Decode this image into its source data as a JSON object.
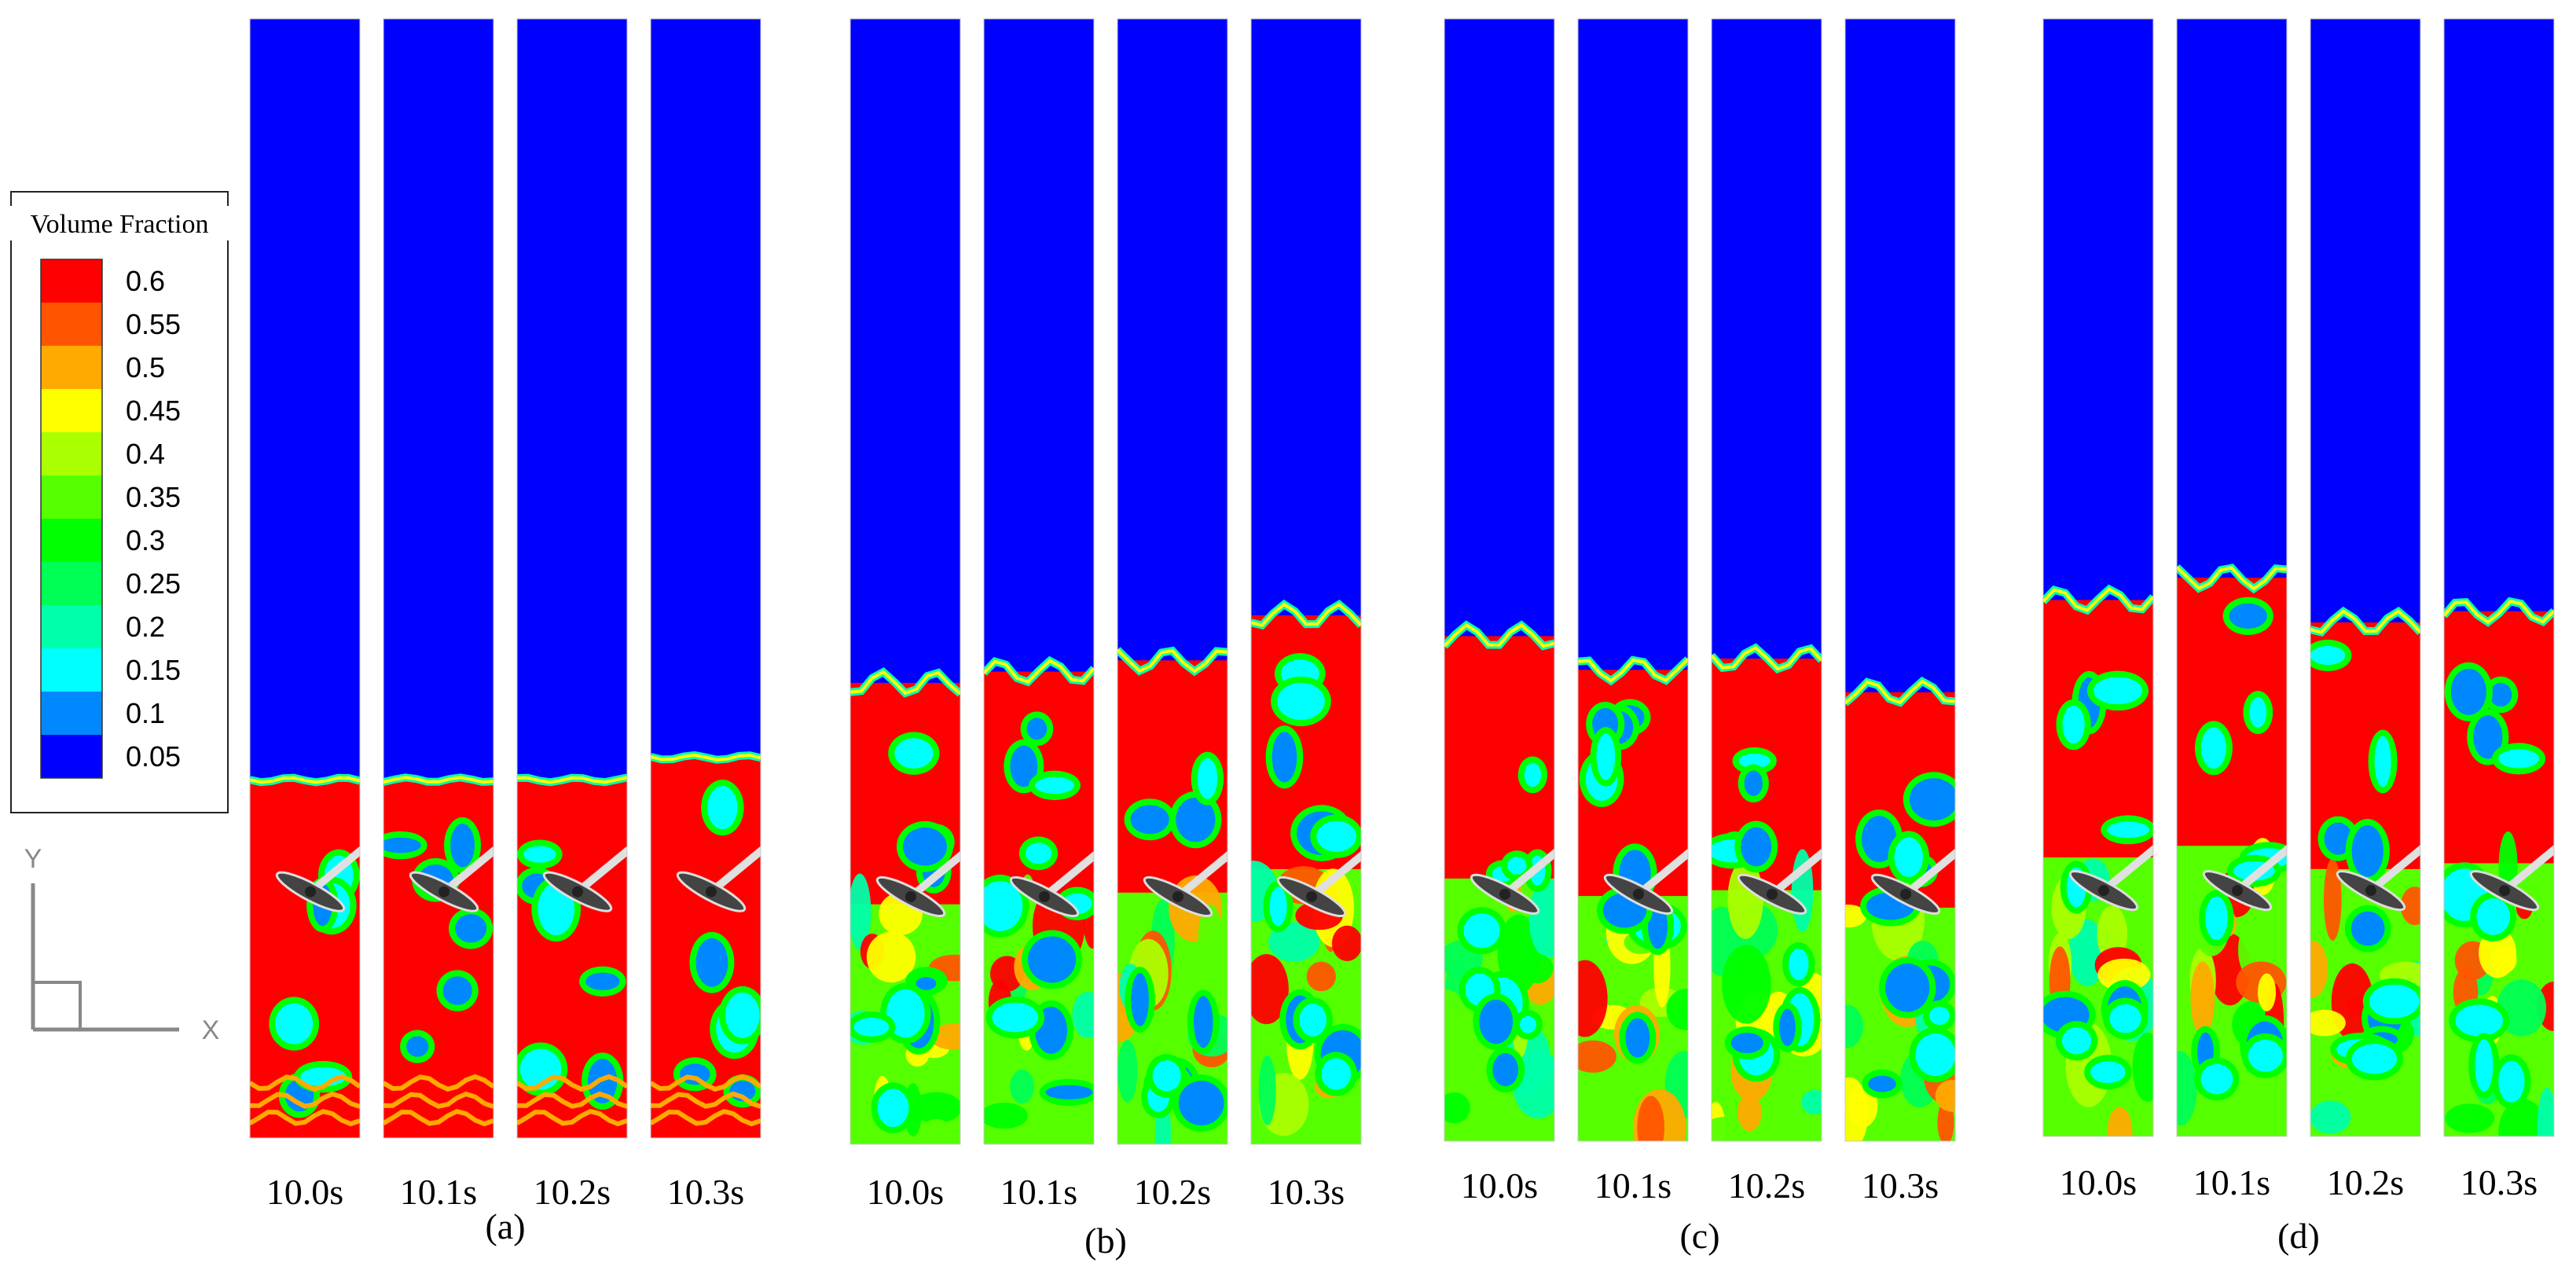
{
  "legend": {
    "title": "Volume Fraction",
    "levels": [
      {
        "label": "0.6",
        "color": "#ff0000"
      },
      {
        "label": "0.55",
        "color": "#ff5500"
      },
      {
        "label": "0.5",
        "color": "#ffaa00"
      },
      {
        "label": "0.45",
        "color": "#ffff00"
      },
      {
        "label": "0.4",
        "color": "#aaff00"
      },
      {
        "label": "0.35",
        "color": "#55ff00"
      },
      {
        "label": "0.3",
        "color": "#00ff00"
      },
      {
        "label": "0.25",
        "color": "#00ff55"
      },
      {
        "label": "0.2",
        "color": "#00ffaa"
      },
      {
        "label": "0.15",
        "color": "#00ffff"
      },
      {
        "label": "0.1",
        "color": "#0088ff"
      },
      {
        "label": "0.05",
        "color": "#0000ff"
      }
    ]
  },
  "axes": {
    "y_label": "Y",
    "x_label": "X"
  },
  "groups": [
    {
      "label": "(a)",
      "panels": [
        {
          "time": "10.0s",
          "bed_fraction": 0.32
        },
        {
          "time": "10.1s",
          "bed_fraction": 0.32
        },
        {
          "time": "10.2s",
          "bed_fraction": 0.32
        },
        {
          "time": "10.3s",
          "bed_fraction": 0.34
        }
      ]
    },
    {
      "label": "(b)",
      "panels": [
        {
          "time": "10.0s",
          "bed_fraction": 0.41
        },
        {
          "time": "10.1s",
          "bed_fraction": 0.42
        },
        {
          "time": "10.2s",
          "bed_fraction": 0.43
        },
        {
          "time": "10.3s",
          "bed_fraction": 0.47
        }
      ]
    },
    {
      "label": "(c)",
      "panels": [
        {
          "time": "10.0s",
          "bed_fraction": 0.45
        },
        {
          "time": "10.1s",
          "bed_fraction": 0.42
        },
        {
          "time": "10.2s",
          "bed_fraction": 0.43
        },
        {
          "time": "10.3s",
          "bed_fraction": 0.4
        }
      ]
    },
    {
      "label": "(d)",
      "panels": [
        {
          "time": "10.0s",
          "bed_fraction": 0.48
        },
        {
          "time": "10.1s",
          "bed_fraction": 0.5
        },
        {
          "time": "10.2s",
          "bed_fraction": 0.46
        },
        {
          "time": "10.3s",
          "bed_fraction": 0.47
        }
      ]
    }
  ]
}
